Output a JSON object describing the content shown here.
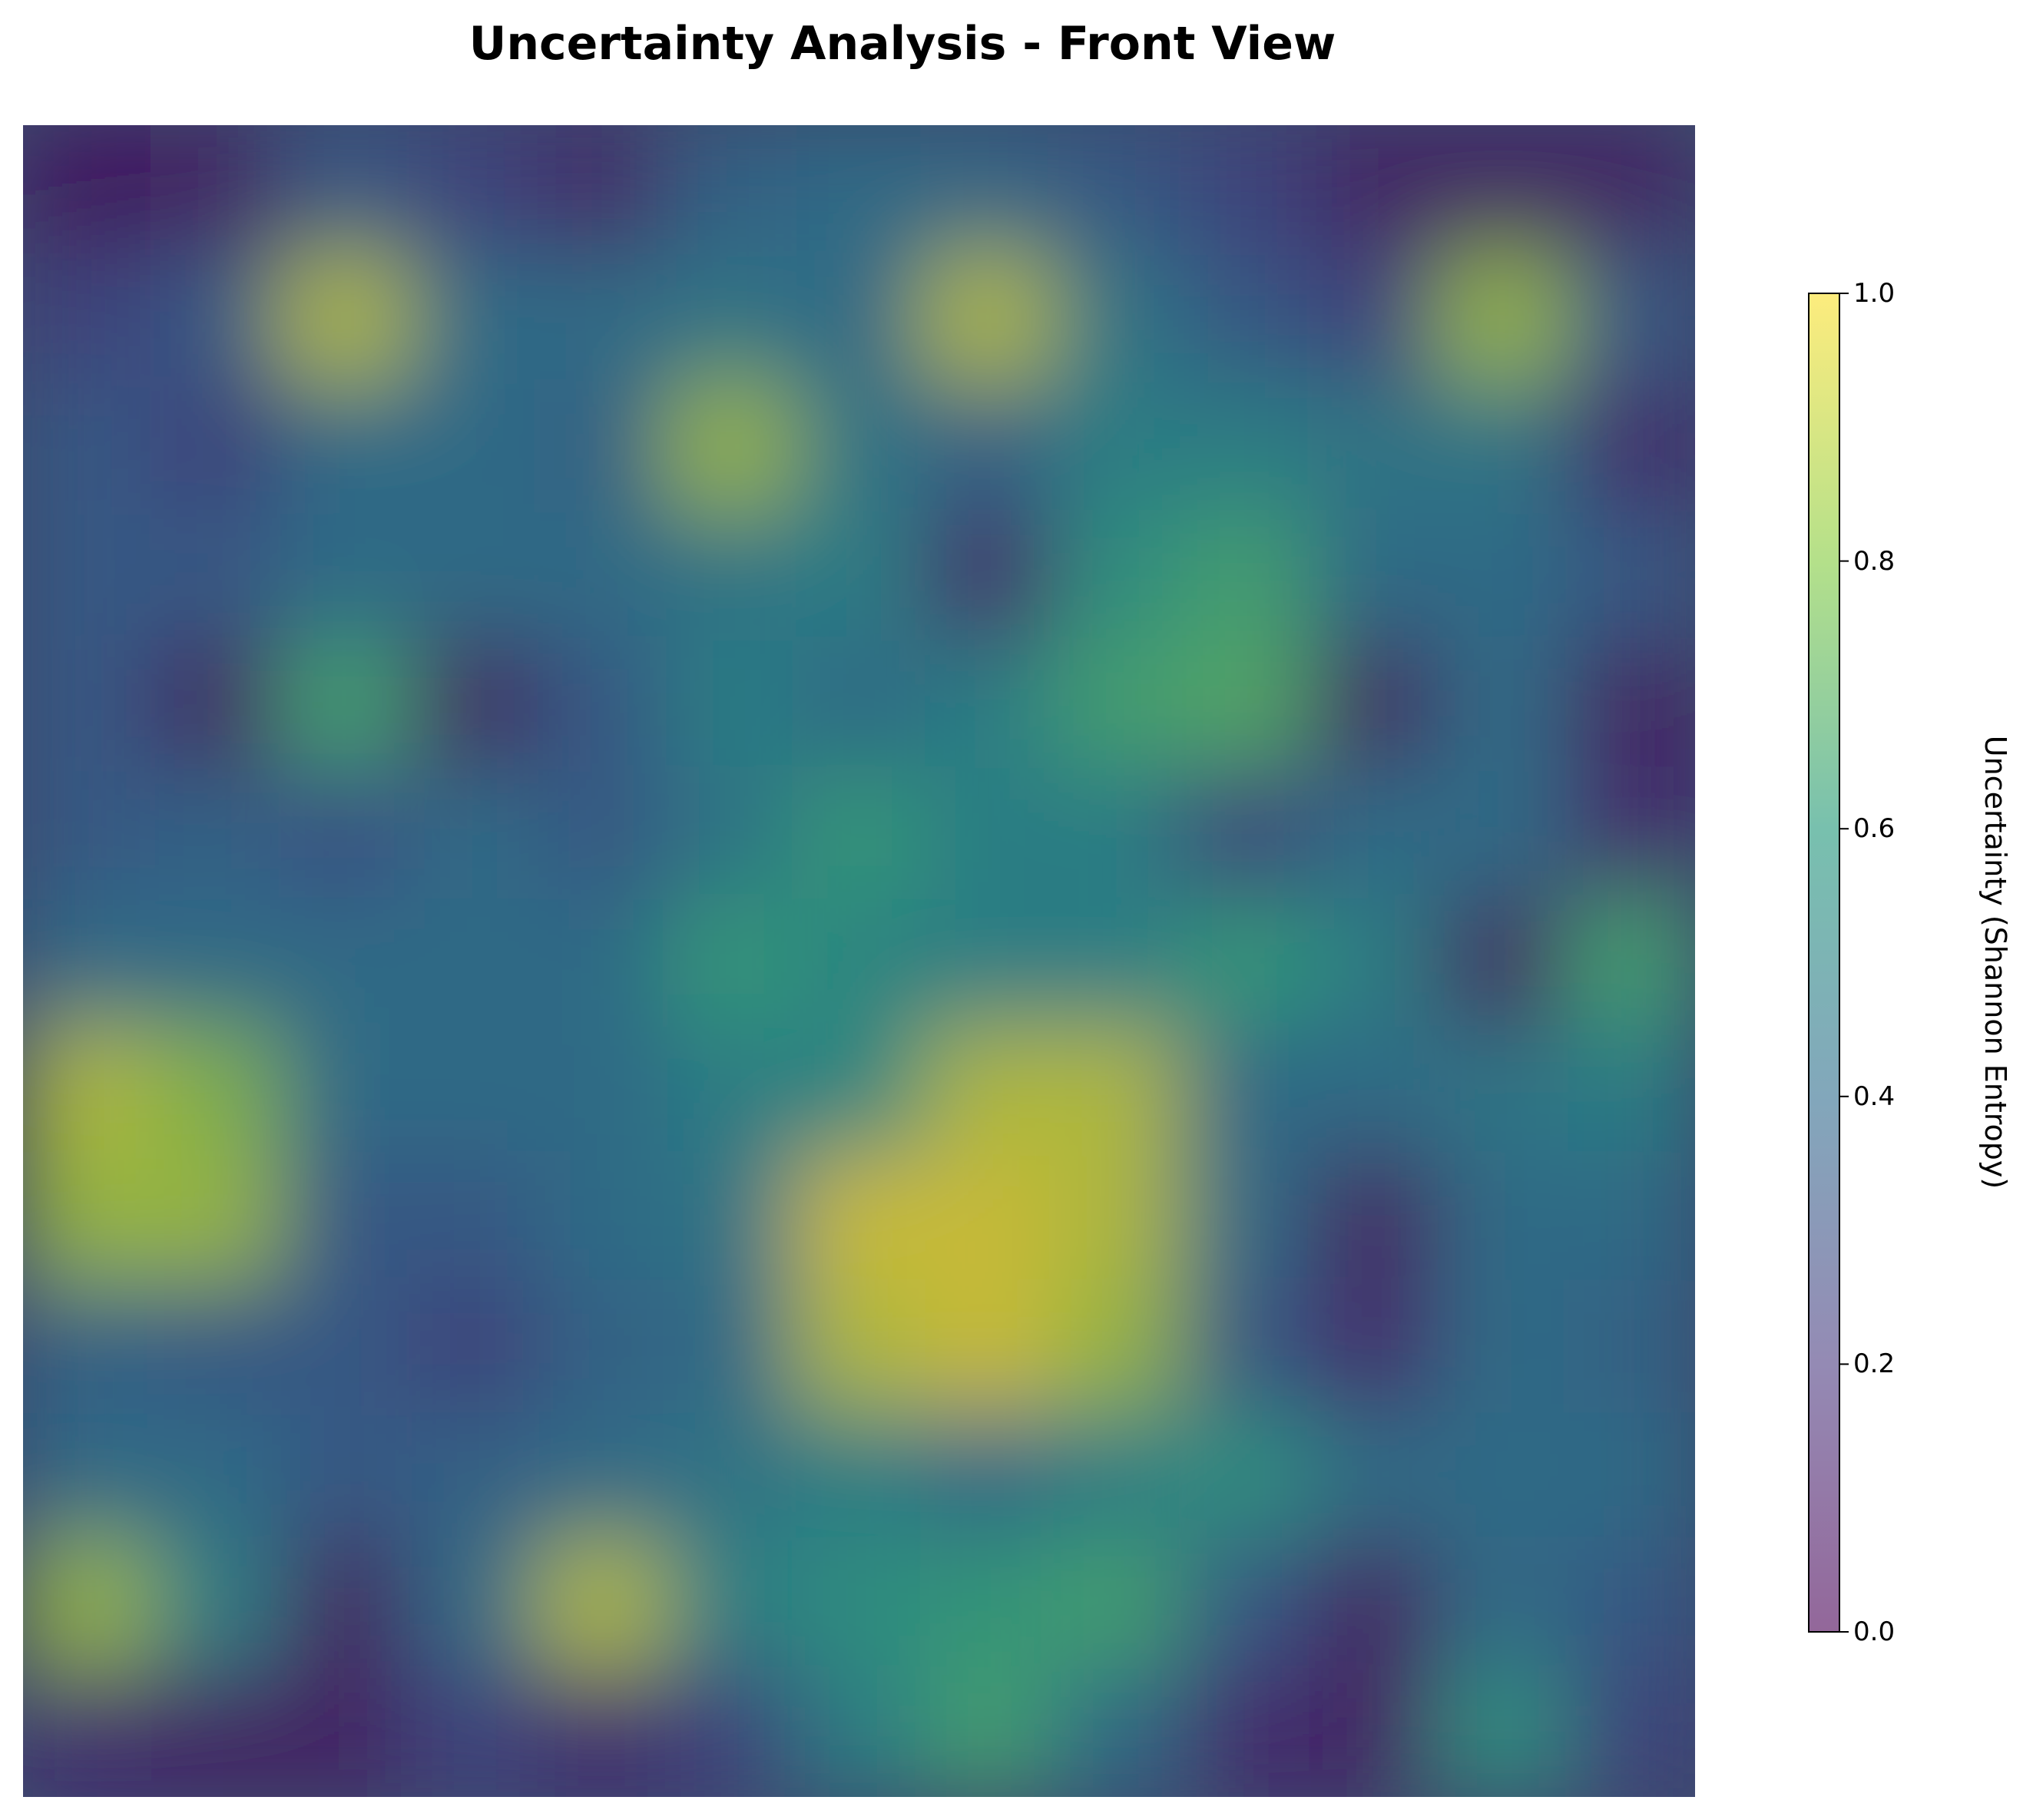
{
  "chart_data": {
    "type": "heatmap",
    "title": "Uncertainty Analysis - Front View",
    "colorbar": {
      "label": "Uncertainty (Shannon Entropy)",
      "range": [
        0.0,
        1.0
      ],
      "ticks": [
        "0.0",
        "0.2",
        "0.4",
        "0.6",
        "0.8",
        "1.0"
      ],
      "tick_values": [
        0.0,
        0.2,
        0.4,
        0.6,
        0.8,
        1.0
      ],
      "colormap": "viridis"
    },
    "axes_visible": false,
    "grid_shape": [
      13,
      13
    ],
    "values": [
      [
        0.02,
        0.05,
        0.3,
        0.2,
        0.08,
        0.35,
        0.4,
        0.38,
        0.3,
        0.2,
        0.05,
        0.05,
        0.05
      ],
      [
        0.2,
        0.3,
        0.95,
        0.4,
        0.4,
        0.45,
        0.4,
        0.95,
        0.45,
        0.3,
        0.2,
        0.9,
        0.3
      ],
      [
        0.3,
        0.2,
        0.4,
        0.4,
        0.35,
        0.9,
        0.45,
        0.35,
        0.5,
        0.5,
        0.45,
        0.45,
        0.1
      ],
      [
        0.3,
        0.3,
        0.4,
        0.4,
        0.4,
        0.45,
        0.5,
        0.1,
        0.6,
        0.7,
        0.4,
        0.4,
        0.3
      ],
      [
        0.3,
        0.05,
        0.7,
        0.05,
        0.3,
        0.5,
        0.4,
        0.5,
        0.7,
        0.75,
        0.05,
        0.4,
        0.05
      ],
      [
        0.3,
        0.35,
        0.25,
        0.4,
        0.3,
        0.45,
        0.65,
        0.5,
        0.5,
        0.2,
        0.4,
        0.4,
        0.1
      ],
      [
        0.4,
        0.4,
        0.4,
        0.4,
        0.4,
        0.65,
        0.55,
        0.5,
        0.5,
        0.65,
        0.5,
        0.05,
        0.7
      ],
      [
        0.95,
        0.85,
        0.4,
        0.4,
        0.4,
        0.5,
        0.55,
        0.95,
        0.95,
        0.4,
        0.4,
        0.45,
        0.5
      ],
      [
        0.9,
        0.9,
        0.3,
        0.3,
        0.4,
        0.45,
        1.0,
        1.0,
        0.95,
        0.4,
        0.05,
        0.4,
        0.4
      ],
      [
        0.35,
        0.3,
        0.3,
        0.2,
        0.35,
        0.4,
        0.95,
        1.0,
        0.9,
        0.3,
        0.1,
        0.4,
        0.35
      ],
      [
        0.4,
        0.4,
        0.3,
        0.35,
        0.4,
        0.45,
        0.5,
        0.4,
        0.5,
        0.6,
        0.4,
        0.4,
        0.4
      ],
      [
        0.9,
        0.5,
        0.05,
        0.4,
        0.95,
        0.5,
        0.6,
        0.65,
        0.7,
        0.3,
        0.05,
        0.4,
        0.3
      ],
      [
        0.1,
        0.05,
        0.05,
        0.2,
        0.1,
        0.2,
        0.5,
        0.7,
        0.4,
        0.1,
        0.05,
        0.6,
        0.2
      ]
    ]
  }
}
